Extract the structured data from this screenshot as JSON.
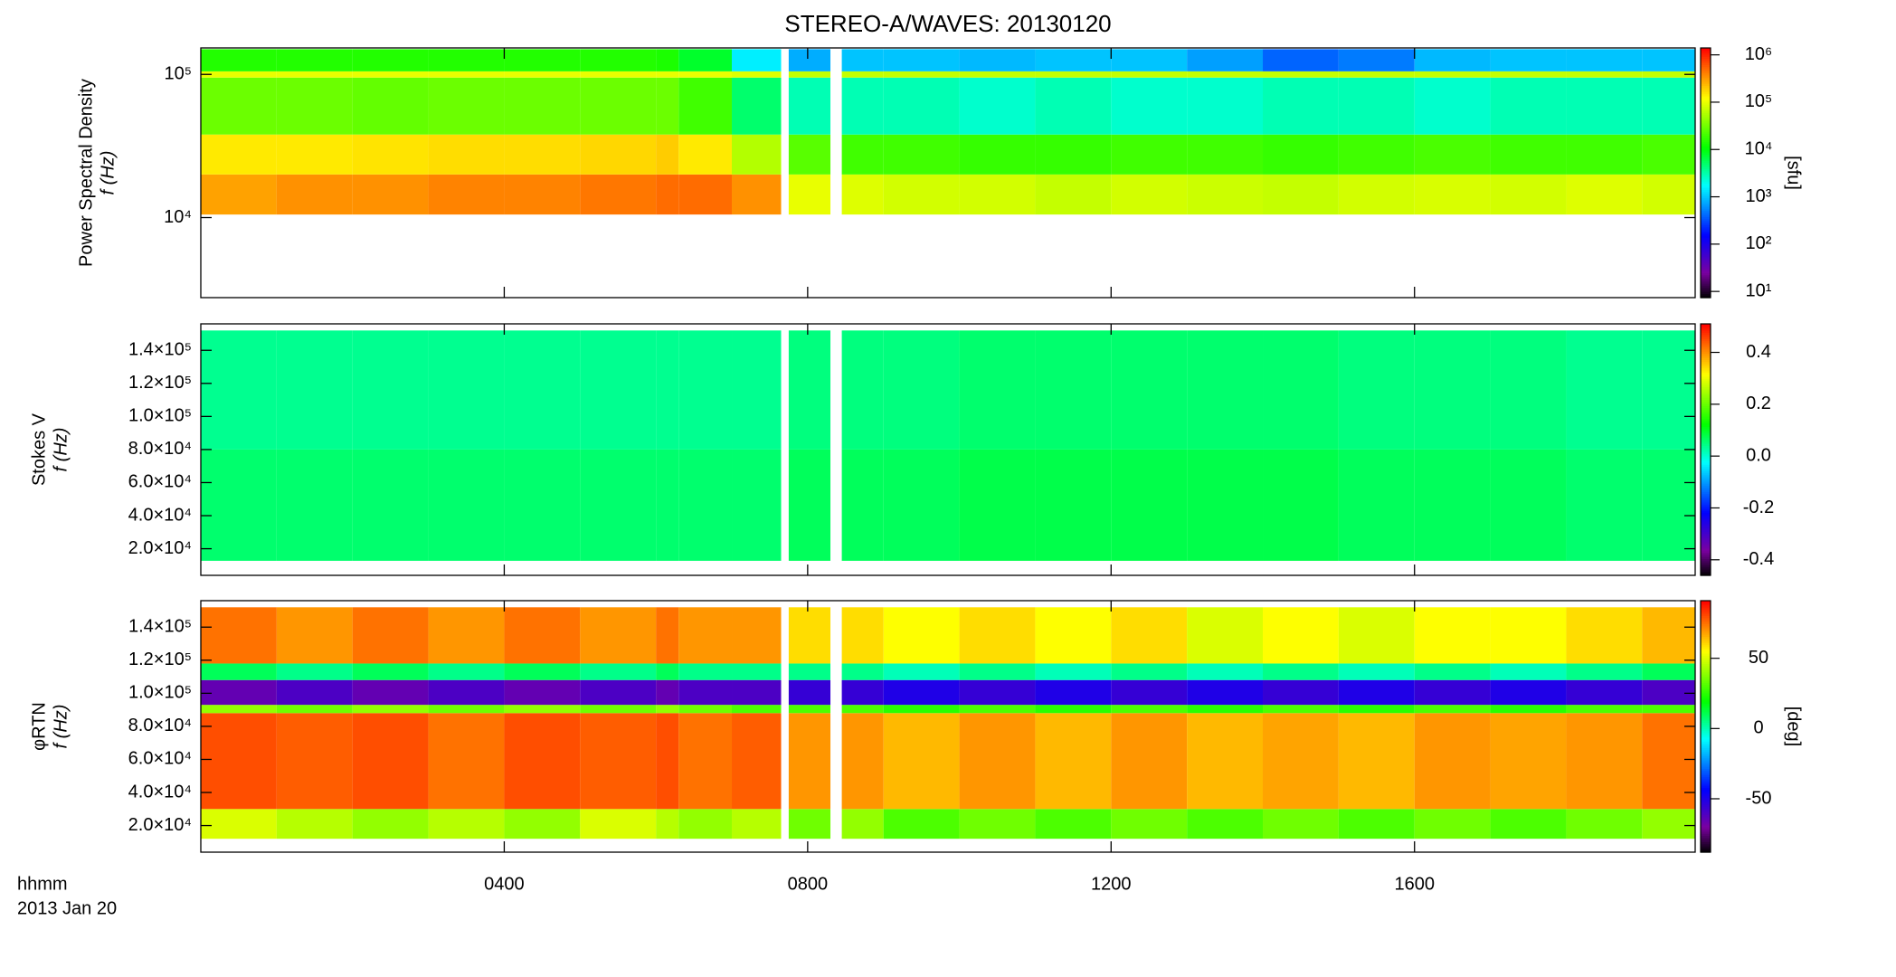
{
  "chart_data": [
    {
      "type": "heatmap",
      "title": "STEREO-A/WAVES: 20130120",
      "ylabel": [
        "Power Spectral Density",
        "f (Hz)"
      ],
      "ylog": true,
      "ylim": [
        2760,
        153000
      ],
      "yticks": [
        {
          "value": 10000,
          "label": "10⁴"
        },
        {
          "value": 100000,
          "label": "10⁵"
        }
      ],
      "x": [
        0,
        1,
        2,
        3,
        4,
        5,
        6,
        6.3,
        7,
        7.65,
        7.75,
        8.3,
        8.45,
        9,
        10,
        11,
        12,
        13,
        14,
        15,
        16,
        17,
        18,
        19,
        19.7
      ],
      "y": [
        10500,
        20000,
        38000,
        95000,
        105000,
        150000
      ],
      "z": [
        [
          300000,
          350000,
          350000,
          400000,
          400000,
          450000,
          500000,
          500000,
          350000,
          null,
          100000,
          null,
          90000,
          80000,
          80000,
          70000,
          80000,
          75000,
          70000,
          80000,
          85000,
          80000,
          90000,
          80000
        ],
        [
          150000,
          150000,
          160000,
          170000,
          170000,
          180000,
          200000,
          150000,
          60000,
          null,
          25000,
          null,
          20000,
          20000,
          18000,
          18000,
          20000,
          20000,
          18000,
          20000,
          22000,
          20000,
          20000,
          22000
        ],
        [
          30000,
          30000,
          28000,
          30000,
          30000,
          30000,
          30000,
          20000,
          5000,
          null,
          3000,
          null,
          3000,
          3000,
          2500,
          3000,
          2500,
          2500,
          3000,
          3000,
          2500,
          3000,
          3000,
          3000
        ],
        [
          100000,
          100000,
          100000,
          100000,
          100000,
          100000,
          100000,
          100000,
          90000,
          null,
          70000,
          null,
          70000,
          70000,
          70000,
          70000,
          70000,
          70000,
          70000,
          70000,
          70000,
          70000,
          70000,
          70000
        ],
        [
          15000,
          15000,
          15000,
          15000,
          15000,
          15000,
          14000,
          8000,
          1500,
          null,
          800,
          null,
          1000,
          1000,
          900,
          1000,
          1000,
          700,
          400,
          500,
          900,
          1000,
          1000,
          1000
        ]
      ],
      "colorbar": {
        "label": "[sfu]",
        "log": true,
        "colormap": "rainbow",
        "lim": [
          7.4,
          1400000
        ],
        "ticks": [
          {
            "value": 10,
            "label": "10¹"
          },
          {
            "value": 100,
            "label": "10²"
          },
          {
            "value": 1000,
            "label": "10³"
          },
          {
            "value": 10000,
            "label": "10⁴"
          },
          {
            "value": 100000,
            "label": "10⁵"
          },
          {
            "value": 1000000,
            "label": "10⁶"
          }
        ]
      }
    },
    {
      "type": "heatmap",
      "ylabel": [
        "Stokes V",
        "f (Hz)"
      ],
      "ylog": false,
      "ylim": [
        3900,
        156000
      ],
      "yticks": [
        {
          "value": 20000,
          "label": "2.0×10⁴"
        },
        {
          "value": 40000,
          "label": "4.0×10⁴"
        },
        {
          "value": 60000,
          "label": "6.0×10⁴"
        },
        {
          "value": 80000,
          "label": "8.0×10⁴"
        },
        {
          "value": 100000,
          "label": "1.0×10⁵"
        },
        {
          "value": 120000,
          "label": "1.2×10⁵"
        },
        {
          "value": 140000,
          "label": "1.4×10⁵"
        }
      ],
      "x": [
        0,
        1,
        2,
        3,
        4,
        5,
        6,
        6.3,
        7,
        7.65,
        7.75,
        8.3,
        8.45,
        9,
        10,
        11,
        12,
        13,
        14,
        15,
        16,
        17,
        18,
        19,
        19.7
      ],
      "y": [
        12700,
        80000,
        152000
      ],
      "z": [
        [
          0.06,
          0.06,
          0.06,
          0.06,
          0.06,
          0.06,
          0.06,
          0.06,
          0.06,
          null,
          0.07,
          null,
          0.07,
          0.07,
          0.08,
          0.08,
          0.08,
          0.08,
          0.08,
          0.07,
          0.07,
          0.07,
          0.06,
          0.06
        ],
        [
          0.04,
          0.04,
          0.04,
          0.04,
          0.04,
          0.04,
          0.04,
          0.04,
          0.04,
          null,
          0.05,
          null,
          0.05,
          0.05,
          0.06,
          0.06,
          0.06,
          0.06,
          0.06,
          0.05,
          0.05,
          0.05,
          0.04,
          0.04
        ]
      ],
      "colorbar": {
        "log": false,
        "colormap": "rainbow",
        "lim": [
          -0.46,
          0.51
        ],
        "ticks": [
          -0.4,
          -0.2,
          {
            "value": 0,
            "label": "0.0"
          },
          0.2,
          0.4
        ]
      }
    },
    {
      "type": "heatmap",
      "ylabel": [
        "φRTN",
        "f (Hz)"
      ],
      "ylog": false,
      "ylim": [
        3900,
        156000
      ],
      "yticks": [
        {
          "value": 20000,
          "label": "2.0×10⁴"
        },
        {
          "value": 40000,
          "label": "4.0×10⁴"
        },
        {
          "value": 60000,
          "label": "6.0×10⁴"
        },
        {
          "value": 80000,
          "label": "8.0×10⁴"
        },
        {
          "value": 100000,
          "label": "1.0×10⁵"
        },
        {
          "value": 120000,
          "label": "1.2×10⁵"
        },
        {
          "value": 140000,
          "label": "1.4×10⁵"
        }
      ],
      "x": [
        0,
        1,
        2,
        3,
        4,
        5,
        6,
        6.3,
        7,
        7.65,
        7.75,
        8.3,
        8.45,
        9,
        10,
        11,
        12,
        13,
        14,
        15,
        16,
        17,
        18,
        19,
        19.7
      ],
      "y": [
        12000,
        30000,
        88000,
        93000,
        108000,
        118000,
        152000
      ],
      "z": [
        [
          50,
          45,
          40,
          45,
          40,
          50,
          45,
          40,
          45,
          null,
          35,
          null,
          40,
          30,
          35,
          30,
          35,
          30,
          35,
          30,
          35,
          30,
          35,
          40
        ],
        [
          80,
          78,
          80,
          75,
          80,
          78,
          80,
          75,
          78,
          null,
          70,
          null,
          70,
          65,
          70,
          65,
          70,
          65,
          68,
          65,
          70,
          68,
          70,
          75
        ],
        [
          40,
          35,
          40,
          35,
          40,
          35,
          40,
          35,
          30,
          null,
          30,
          null,
          30,
          25,
          30,
          25,
          30,
          25,
          30,
          25,
          30,
          25,
          30,
          30
        ],
        [
          -65,
          -60,
          -65,
          -60,
          -65,
          -60,
          -65,
          -60,
          -60,
          null,
          -55,
          null,
          -55,
          -50,
          -55,
          -50,
          -55,
          -50,
          -55,
          -50,
          -55,
          -50,
          -55,
          -60
        ],
        [
          10,
          5,
          10,
          5,
          10,
          5,
          10,
          5,
          5,
          null,
          5,
          null,
          5,
          0,
          5,
          0,
          5,
          0,
          5,
          0,
          5,
          0,
          5,
          10
        ],
        [
          75,
          70,
          75,
          70,
          75,
          70,
          75,
          70,
          70,
          null,
          60,
          null,
          60,
          55,
          60,
          55,
          60,
          50,
          55,
          50,
          55,
          55,
          60,
          65
        ]
      ],
      "xlim": [
        0,
        19.7
      ],
      "xticks": [
        {
          "value": 4,
          "label": "0400"
        },
        {
          "value": 8,
          "label": "0800"
        },
        {
          "value": 12,
          "label": "1200"
        },
        {
          "value": 16,
          "label": "1600"
        }
      ],
      "xlabel": [
        "hhmm",
        "2013 Jan 20"
      ],
      "colorbar": {
        "label": "[deg]",
        "log": false,
        "colormap": "rainbow",
        "lim": [
          -88,
          91
        ],
        "ticks": [
          -50,
          0,
          50
        ]
      }
    }
  ]
}
